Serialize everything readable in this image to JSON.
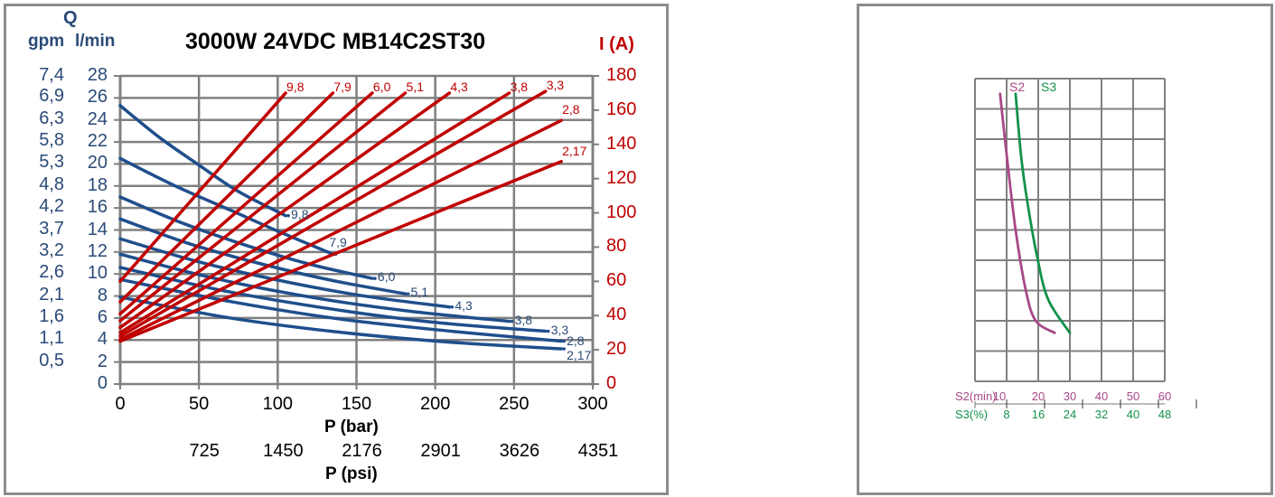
{
  "colors": {
    "flow": "#1f4e8c",
    "flow_text": "#2b4a78",
    "current": "#c00000",
    "grid": "#808080",
    "s2": "#a84888",
    "s3": "#12924a"
  },
  "left_chart": {
    "title": "3000W 24VDC MB14C2ST30",
    "q_label": "Q",
    "gpm_label": "gpm",
    "lmin_label": "l/min",
    "i_label": "I (A)",
    "p_bar_label": "P (bar)",
    "p_psi_label": "P (psi)"
  },
  "right_chart": {
    "s2_axis_label": "S2(min)",
    "s3_axis_label": "S3(%)",
    "s2_curve_label": "S2",
    "s3_curve_label": "S3"
  },
  "chart_data": [
    {
      "type": "line",
      "title": "3000W 24VDC MB14C2ST30",
      "xlabel": "P (bar)",
      "x2label": "P (psi)",
      "ylabel": "Q (l/min)",
      "y2label": "I (A)",
      "xlim": [
        0,
        300
      ],
      "ylim": [
        0,
        28
      ],
      "y2lim": [
        0,
        180
      ],
      "grid": true,
      "x_ticks": [
        0,
        50,
        100,
        150,
        200,
        250,
        300
      ],
      "x2_ticks": [
        "725",
        "1450",
        "2176",
        "2901",
        "3626",
        "4351"
      ],
      "y_ticks_lmin": [
        0,
        2,
        4,
        6,
        8,
        10,
        12,
        14,
        16,
        18,
        20,
        22,
        24,
        26,
        28
      ],
      "y_ticks_gpm": [
        "0,5",
        "1,1",
        "1,6",
        "2,1",
        "2,6",
        "3,2",
        "3,7",
        "4,2",
        "4,8",
        "5,3",
        "5,8",
        "6,3",
        "6,9",
        "7,4"
      ],
      "y2_ticks": [
        0,
        20,
        40,
        60,
        80,
        100,
        120,
        140,
        160,
        180
      ],
      "flow_series": [
        {
          "name": "9,8",
          "x": [
            0,
            25,
            50,
            75,
            105
          ],
          "y": [
            25.3,
            22.4,
            19.9,
            17.5,
            15.3
          ]
        },
        {
          "name": "7,9",
          "x": [
            0,
            35,
            70,
            100,
            135
          ],
          "y": [
            20.5,
            18.0,
            15.8,
            13.9,
            11.8
          ]
        },
        {
          "name": "6,0",
          "x": [
            0,
            40,
            80,
            120,
            160
          ],
          "y": [
            17.0,
            14.6,
            12.6,
            10.9,
            9.6
          ]
        },
        {
          "name": "5,1",
          "x": [
            0,
            45,
            90,
            135,
            181
          ],
          "y": [
            15.0,
            12.7,
            10.9,
            9.4,
            8.2
          ]
        },
        {
          "name": "4,3",
          "x": [
            0,
            50,
            105,
            155,
            209
          ],
          "y": [
            13.2,
            11.1,
            9.3,
            8.0,
            7.0
          ]
        },
        {
          "name": "3,8",
          "x": [
            0,
            60,
            125,
            185,
            247
          ],
          "y": [
            11.8,
            9.6,
            7.8,
            6.6,
            5.7
          ]
        },
        {
          "name": "3,3",
          "x": [
            0,
            65,
            135,
            200,
            270
          ],
          "y": [
            10.6,
            8.5,
            6.8,
            5.6,
            4.8
          ]
        },
        {
          "name": "2,8",
          "x": [
            0,
            70,
            140,
            210,
            280
          ],
          "y": [
            9.5,
            7.5,
            5.9,
            4.8,
            3.9
          ]
        },
        {
          "name": "2,17",
          "x": [
            0,
            70,
            140,
            210,
            280
          ],
          "y": [
            7.9,
            6.0,
            4.7,
            3.8,
            3.2
          ]
        }
      ],
      "current_series": [
        {
          "name": "9,8",
          "x": [
            0,
            105
          ],
          "y": [
            60,
            170
          ]
        },
        {
          "name": "7,9",
          "x": [
            0,
            135
          ],
          "y": [
            48,
            170
          ]
        },
        {
          "name": "6,0",
          "x": [
            0,
            160
          ],
          "y": [
            41,
            170
          ]
        },
        {
          "name": "5,1",
          "x": [
            0,
            181
          ],
          "y": [
            37,
            170
          ]
        },
        {
          "name": "4,3",
          "x": [
            0,
            209
          ],
          "y": [
            33,
            170
          ]
        },
        {
          "name": "3,8",
          "x": [
            0,
            247
          ],
          "y": [
            30,
            170
          ]
        },
        {
          "name": "3,3",
          "x": [
            0,
            270
          ],
          "y": [
            28,
            171
          ]
        },
        {
          "name": "2,8",
          "x": [
            0,
            280
          ],
          "y": [
            26,
            154
          ]
        },
        {
          "name": "2,17",
          "x": [
            0,
            280
          ],
          "y": [
            25,
            130
          ]
        }
      ]
    },
    {
      "type": "line",
      "title": "",
      "xlabel": "S2(min)",
      "x2label": "S3(%)",
      "ylabel": "",
      "grid": true,
      "grid_cols": 6,
      "grid_rows": 10,
      "xlim": [
        10,
        60
      ],
      "x_ticks": [
        10,
        20,
        30,
        40,
        50,
        60
      ],
      "x2_ticks": [
        8,
        16,
        24,
        32,
        40,
        48
      ],
      "series": [
        {
          "name": "S2",
          "x": [
            16.6,
            18.6,
            20.7,
            23.4,
            26.0,
            31.0
          ],
          "y_row_from_top": [
            0.5,
            2.8,
            5.0,
            7.0,
            8.0,
            8.4
          ]
        },
        {
          "name": "S3",
          "x": [
            20.7,
            22.1,
            23.7,
            26.4,
            29.3,
            35.0
          ],
          "y_row_from_top": [
            0.5,
            2.5,
            4.0,
            5.9,
            7.3,
            8.4
          ]
        }
      ]
    }
  ]
}
